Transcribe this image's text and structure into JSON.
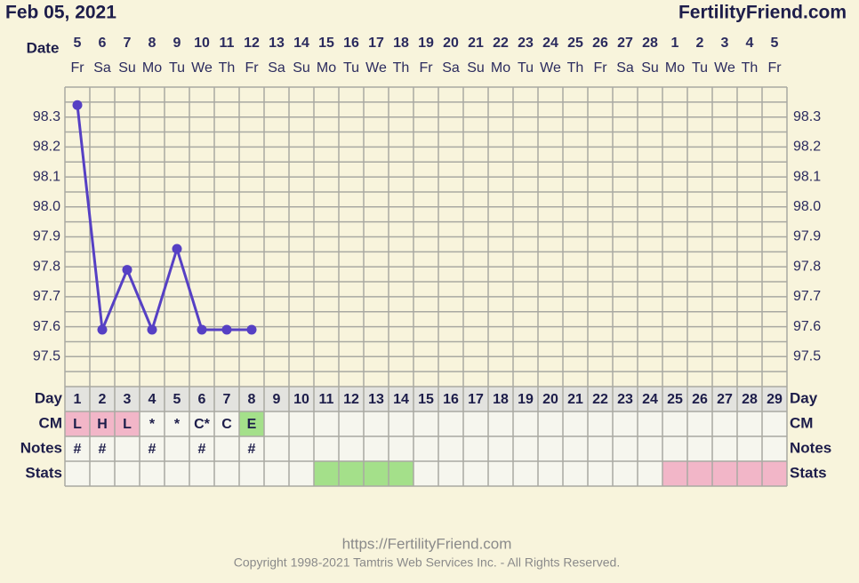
{
  "chart_data": {
    "type": "line",
    "title": "Feb 05, 2021",
    "site": "FertilityFriend.com",
    "date_label": "Date",
    "day_label": "Day",
    "cm_label": "CM",
    "notes_label": "Notes",
    "stats_label": "Stats",
    "dates": [
      5,
      6,
      7,
      8,
      9,
      10,
      11,
      12,
      13,
      14,
      15,
      16,
      17,
      18,
      19,
      20,
      21,
      22,
      23,
      24,
      25,
      26,
      27,
      28,
      1,
      2,
      3,
      4,
      5
    ],
    "weekdays": [
      "Fr",
      "Sa",
      "Su",
      "Mo",
      "Tu",
      "We",
      "Th",
      "Fr",
      "Sa",
      "Su",
      "Mo",
      "Tu",
      "We",
      "Th",
      "Fr",
      "Sa",
      "Su",
      "Mo",
      "Tu",
      "We",
      "Th",
      "Fr",
      "Sa",
      "Su",
      "Mo",
      "Tu",
      "We",
      "Th",
      "Fr"
    ],
    "categories": [
      1,
      2,
      3,
      4,
      5,
      6,
      7,
      8,
      9,
      10,
      11,
      12,
      13,
      14,
      15,
      16,
      17,
      18,
      19,
      20,
      21,
      22,
      23,
      24,
      25,
      26,
      27,
      28,
      29
    ],
    "values": [
      98.34,
      97.59,
      97.79,
      97.59,
      97.86,
      97.59,
      97.59,
      97.59,
      null,
      null,
      null,
      null,
      null,
      null,
      null,
      null,
      null,
      null,
      null,
      null,
      null,
      null,
      null,
      null,
      null,
      null,
      null,
      null,
      null
    ],
    "color": "#5640c4",
    "cm": [
      "L",
      "H",
      "L",
      "*",
      "*",
      "C*",
      "C",
      "E",
      null,
      null,
      null,
      null,
      null,
      null,
      null,
      null,
      null,
      null,
      null,
      null,
      null,
      null,
      null,
      null,
      null,
      null,
      null,
      null,
      null
    ],
    "cm_colors": [
      "#f2b6c8",
      "#f2b6c8",
      "#f2b6c8",
      null,
      null,
      null,
      null,
      "#a4e08a",
      null,
      null,
      null,
      null,
      null,
      null,
      null,
      null,
      null,
      null,
      null,
      null,
      null,
      null,
      null,
      null,
      null,
      null,
      null,
      null,
      null
    ],
    "notes": [
      "#",
      "#",
      null,
      "#",
      null,
      "#",
      null,
      "#",
      null,
      null,
      null,
      null,
      null,
      null,
      null,
      null,
      null,
      null,
      null,
      null,
      null,
      null,
      null,
      null,
      null,
      null,
      null,
      null,
      null
    ],
    "stats_colors": [
      null,
      null,
      null,
      null,
      null,
      null,
      null,
      null,
      null,
      null,
      "#a4e08a",
      "#a4e08a",
      "#a4e08a",
      "#a4e08a",
      null,
      null,
      null,
      null,
      null,
      null,
      null,
      null,
      null,
      null,
      "#f2b6c8",
      "#f2b6c8",
      "#f2b6c8",
      "#f2b6c8",
      "#f2b6c8"
    ],
    "ylim": [
      97.4,
      98.4
    ],
    "yticks": [
      97.5,
      97.6,
      97.7,
      97.8,
      97.9,
      {
        "value": 98.0,
        "label": "98.0"
      },
      98.1,
      98.2,
      98.3
    ],
    "footer_url": "https://FertilityFriend.com",
    "copyright": "Copyright 1998-2021 Tamtris Web Services Inc. - All Rights Reserved."
  }
}
